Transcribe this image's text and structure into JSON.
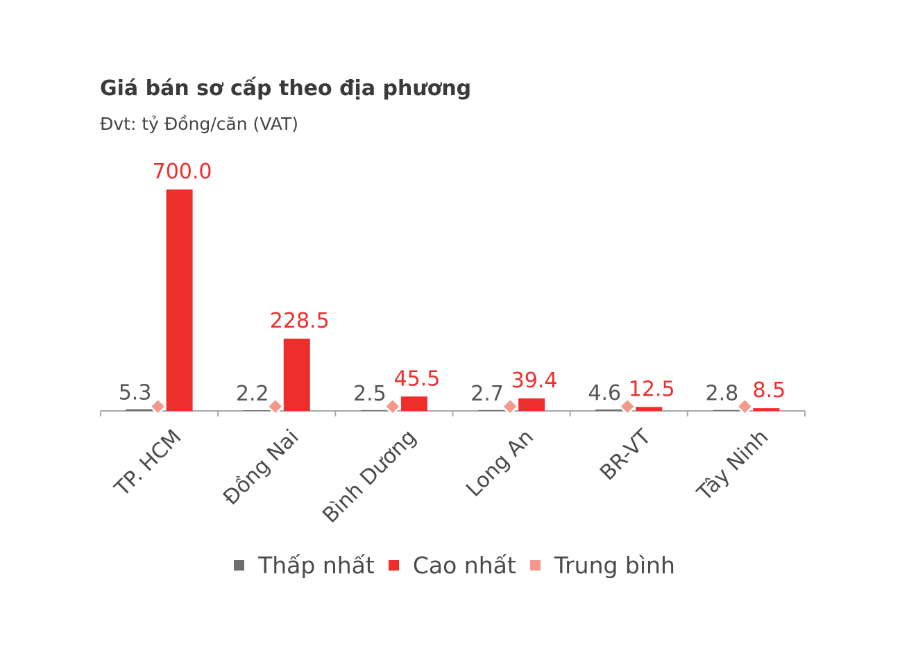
{
  "title": "Giá bán sơ cấp theo địa phương",
  "subtitle": "Đvt: tỷ Đồng/căn (VAT)",
  "colors": {
    "min": "#6e6e6e",
    "max": "#ee2e2b",
    "avg": "#f4988c",
    "min_label": "#555555",
    "max_label": "#ee2e2b",
    "axis": "#a8a8a8",
    "category_label": "#4a4a4a"
  },
  "chart_data": {
    "type": "bar",
    "categories": [
      "TP. HCM",
      "Đồng Nai",
      "Bình Dương",
      "Long An",
      "BR-VT",
      "Tây Ninh"
    ],
    "series": [
      {
        "name": "Thấp nhất",
        "values": [
          5.3,
          2.2,
          2.5,
          2.7,
          4.6,
          2.8
        ],
        "labels": [
          "5.3",
          "2.2",
          "2.5",
          "2.7",
          "4.6",
          "2.8"
        ],
        "color": "#6e6e6e",
        "marker": "bar"
      },
      {
        "name": "Cao nhất",
        "values": [
          700.0,
          228.5,
          45.5,
          39.4,
          12.5,
          8.5
        ],
        "labels": [
          "700.0",
          "228.5",
          "45.5",
          "39.4",
          "12.5",
          "8.5"
        ],
        "color": "#ee2e2b",
        "marker": "bar"
      },
      {
        "name": "Trung bình",
        "values": [
          14,
          14,
          14,
          14,
          14,
          14
        ],
        "color": "#f4988c",
        "marker": "diamond"
      }
    ],
    "ylim": [
      0,
      700
    ],
    "grid": false,
    "legend_position": "bottom"
  }
}
